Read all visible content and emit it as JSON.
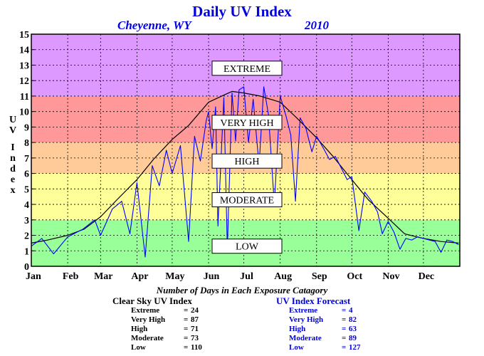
{
  "chart_data": {
    "type": "line",
    "title": "Daily UV Index",
    "location": "Cheyenne, WY",
    "year": "2010",
    "ylabel": "UV Index",
    "ylim": [
      0,
      15
    ],
    "yticks": [
      "0",
      "1",
      "2",
      "3",
      "4",
      "5",
      "6",
      "7",
      "8",
      "9",
      "10",
      "11",
      "12",
      "13",
      "14",
      "15"
    ],
    "xlim": [
      1,
      366
    ],
    "month_labels": [
      "Jan",
      "Feb",
      "Mar",
      "Apr",
      "May",
      "Jun",
      "Jul",
      "Aug",
      "Sep",
      "Oct",
      "Nov",
      "Dec"
    ],
    "month_start_days": [
      1,
      32,
      60,
      91,
      121,
      152,
      182,
      213,
      244,
      274,
      305,
      335
    ],
    "grid": true,
    "bands": [
      {
        "name": "LOW",
        "from": 0,
        "to": 3,
        "color": "#99ff99",
        "label_y": 1.3
      },
      {
        "name": "MODERATE",
        "from": 3,
        "to": 6,
        "color": "#ffff99",
        "label_y": 4.3
      },
      {
        "name": "HIGH",
        "from": 6,
        "to": 8,
        "color": "#ffcc99",
        "label_y": 6.8
      },
      {
        "name": "VERY HIGH",
        "from": 8,
        "to": 11,
        "color": "#ff9999",
        "label_y": 9.3
      },
      {
        "name": "EXTREME",
        "from": 11,
        "to": 15,
        "color": "#dd99ff",
        "label_y": 12.8
      }
    ],
    "series": [
      {
        "name": "Clear Sky UV Index",
        "color": "#000000",
        "x": [
          1,
          15,
          32,
          46,
          60,
          74,
          91,
          105,
          121,
          135,
          152,
          166,
          172,
          182,
          196,
          213,
          227,
          244,
          258,
          274,
          288,
          305,
          319,
          335,
          350,
          365
        ],
        "y": [
          1.5,
          1.7,
          2.0,
          2.4,
          3.2,
          4.3,
          5.6,
          6.9,
          8.2,
          9.1,
          10.6,
          11.1,
          11.3,
          11.2,
          11.0,
          10.6,
          9.6,
          8.3,
          7.1,
          5.6,
          4.3,
          3.1,
          2.1,
          1.8,
          1.6,
          1.5
        ]
      },
      {
        "name": "UV Index Forecast",
        "color": "#0000ff",
        "x": [
          1,
          10,
          20,
          32,
          45,
          55,
          60,
          70,
          78,
          85,
          91,
          98,
          104,
          110,
          116,
          121,
          128,
          135,
          140,
          145,
          150,
          152,
          155,
          158,
          160,
          165,
          168,
          172,
          175,
          178,
          182,
          186,
          190,
          195,
          199,
          203,
          208,
          213,
          218,
          222,
          226,
          230,
          235,
          240,
          244,
          250,
          255,
          260,
          266,
          270,
          274,
          280,
          285,
          291,
          296,
          300,
          305,
          310,
          315,
          320,
          325,
          330,
          335,
          340,
          345,
          350,
          355,
          360,
          365
        ],
        "y": [
          1.3,
          1.8,
          0.8,
          1.9,
          2.4,
          3.0,
          2.0,
          3.7,
          4.2,
          2.1,
          5.4,
          0.6,
          6.5,
          5.2,
          7.5,
          6.0,
          7.8,
          1.6,
          8.4,
          6.8,
          9.4,
          10.0,
          7.6,
          10.3,
          2.6,
          10.9,
          1.1,
          11.2,
          8.1,
          11.4,
          11.6,
          8.0,
          10.8,
          6.5,
          11.6,
          9.8,
          4.0,
          11.0,
          9.7,
          8.5,
          4.2,
          9.6,
          8.9,
          7.4,
          8.4,
          7.6,
          6.9,
          7.1,
          6.2,
          5.6,
          5.8,
          2.3,
          4.8,
          4.2,
          3.5,
          2.1,
          2.9,
          2.2,
          1.1,
          1.8,
          1.7,
          1.9,
          1.8,
          1.7,
          1.6,
          0.9,
          1.7,
          1.6,
          1.4
        ]
      }
    ]
  },
  "summary": {
    "caption": "Number of Days in Each Exposure Catagory",
    "clear_sky": {
      "title": "Clear Sky UV Index",
      "rows": [
        {
          "label": "Extreme",
          "sep": "=",
          "value": "24"
        },
        {
          "label": "Very High",
          "sep": "=",
          "value": "87"
        },
        {
          "label": "High",
          "sep": "=",
          "value": "71"
        },
        {
          "label": "Moderate",
          "sep": "=",
          "value": "73"
        },
        {
          "label": "Low",
          "sep": "=",
          "value": "110"
        }
      ]
    },
    "forecast": {
      "title": "UV Index Forecast",
      "rows": [
        {
          "label": "Extreme",
          "sep": "=",
          "value": "4"
        },
        {
          "label": "Very High",
          "sep": "=",
          "value": "82"
        },
        {
          "label": "High",
          "sep": "=",
          "value": "63"
        },
        {
          "label": "Moderate",
          "sep": "=",
          "value": "89"
        },
        {
          "label": "Low",
          "sep": "=",
          "value": "127"
        }
      ]
    }
  },
  "colors": {
    "title": "#0000e0",
    "forecast_text": "#0000e0",
    "clear_text": "#000000"
  }
}
